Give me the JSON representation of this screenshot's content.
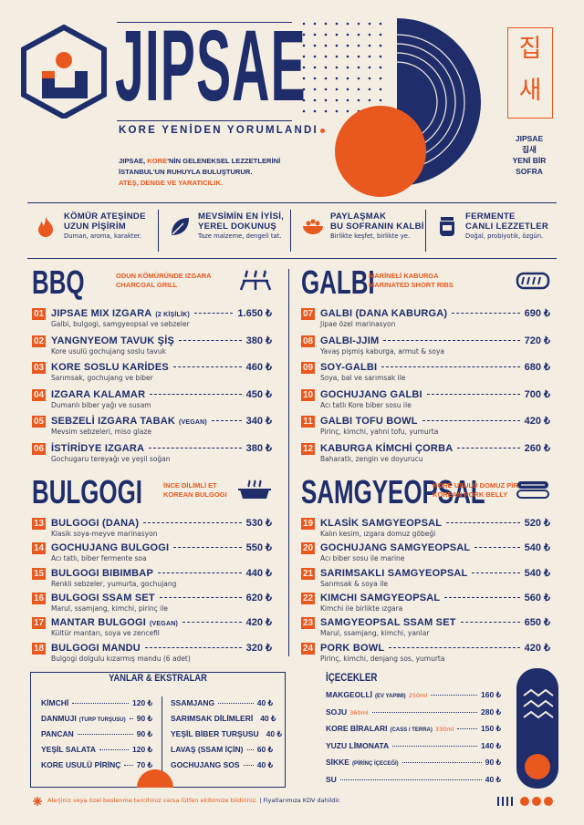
{
  "header": {
    "title": "JIPSAE",
    "tagline": "KORE YENİDEN YORUMLANDI",
    "intro": {
      "lead": "JIPSAE, ",
      "accent_word": "KORE",
      "rest": "'NİN GELENEKSEL LEZZETLERİNİ",
      "line2": "İSTANBUL'UN RUHUYLA BULUŞTURUR.",
      "line3": "ATEŞ, DENGE VE YARATICILIK."
    },
    "korean": {
      "box": [
        "집",
        "새"
      ],
      "lines": [
        "JIPSAE",
        "집새",
        "YENİ BİR",
        "SOFRA"
      ]
    }
  },
  "features": [
    {
      "title": [
        "KÖMÜR ATEŞİNDE",
        "UZUN PİŞİRİM"
      ],
      "text": "Duman, aroma, karakter."
    },
    {
      "title": [
        "MEVSİMİN EN İYİSİ,",
        "YEREL DOKUNUŞ"
      ],
      "text": "Taze malzeme, dengeli tat."
    },
    {
      "title": [
        "PAYLAŞMAK",
        "BU SOFRANIN KALBİ"
      ],
      "text": "Birlikte keşfet, birlikte ye."
    },
    {
      "title": [
        "FERMENTE",
        "CANLI LEZZETLER"
      ],
      "text": "Doğal, probiyotik, özgün."
    }
  ],
  "sections": [
    {
      "title": "BBQ",
      "subtitle": [
        "ODUN KÖMÜRÜNDE IZGARA",
        "CHARCOAL GRILL"
      ],
      "items": [
        {
          "no": "01",
          "name": "JIPSAE MIX IZGARA",
          "tag": "(2 KİŞİLİK)",
          "price": "1.650 ₺",
          "desc": "Galbi, bulgogi, samgyeopsal ve sebzeler"
        },
        {
          "no": "02",
          "name": "YANGNYEOM TAVUK ŞİŞ",
          "price": "380 ₺",
          "desc": "Kore usulü gochujang soslu tavuk"
        },
        {
          "no": "03",
          "name": "KORE SOSLU KARİDES",
          "price": "460 ₺",
          "desc": "Sarımsak, gochujang ve biber"
        },
        {
          "no": "04",
          "name": "IZGARA KALAMAR",
          "price": "450 ₺",
          "desc": "Dumanlı biber yağı ve susam"
        },
        {
          "no": "05",
          "name": "SEBZELİ IZGARA TABAK",
          "tag": "(VEGAN)",
          "price": "340 ₺",
          "desc": "Mevsim sebzeleri, miso glaze"
        },
        {
          "no": "06",
          "name": "İSTİRİDYE IZGARA",
          "price": "380 ₺",
          "desc": "Gochugaru tereyağı ve yeşil soğan"
        }
      ]
    },
    {
      "title": "GALBI",
      "subtitle": [
        "MARİNELİ KABURGA",
        "MARINATED SHORT RIBS"
      ],
      "items": [
        {
          "no": "07",
          "name": "GALBI (DANA KABURGA)",
          "price": "690 ₺",
          "desc": "Jipae özel marinasyon"
        },
        {
          "no": "08",
          "name": "GALBI-JJIM",
          "price": "720 ₺",
          "desc": "Yavaş pişmiş kaburga, armut & soya"
        },
        {
          "no": "09",
          "name": "SOY-GALBI",
          "price": "680 ₺",
          "desc": "Soya, bal ve sarımsak ile"
        },
        {
          "no": "10",
          "name": "GOCHUJANG GALBI",
          "price": "700 ₺",
          "desc": "Acı tatlı Kore biber sosu ile"
        },
        {
          "no": "11",
          "name": "GALBI TOFU BOWL",
          "price": "420 ₺",
          "desc": "Pirinç, kimchi, yahni tofu, yumurta"
        },
        {
          "no": "12",
          "name": "KABURGA KİMCHİ ÇORBA",
          "price": "260 ₺",
          "desc": "Baharatlı, zengin ve doyurucu"
        }
      ]
    },
    {
      "title": "BULGOGI",
      "subtitle": [
        "İNCE DİLİMLİ ET",
        "KOREAN BULGOGI"
      ],
      "items": [
        {
          "no": "13",
          "name": "BULGOGI (DANA)",
          "price": "530 ₺",
          "desc": "Klasik soya-meyve marinasyon"
        },
        {
          "no": "14",
          "name": "GOCHUJANG BULGOGI",
          "price": "550 ₺",
          "desc": "Acı tatlı, biber fermente soa"
        },
        {
          "no": "15",
          "name": "BULGOGI BIBIMBAP",
          "price": "440 ₺",
          "desc": "Renkli sebzeler, yumurta, gochujang"
        },
        {
          "no": "16",
          "name": "BULGOGI SSAM SET",
          "price": "620 ₺",
          "desc": "Marul, ssamjang, kimchi, pirinç ile"
        },
        {
          "no": "17",
          "name": "MANTAR BULGOGI",
          "tag": "(VEGAN)",
          "price": "420 ₺",
          "desc": "Kültür mantarı, soya ve zencefil"
        },
        {
          "no": "18",
          "name": "BULGOGI MANDU",
          "price": "320 ₺",
          "desc": "Bulgogi dolgulu kızarmış mandu (6 adet)"
        }
      ]
    },
    {
      "title": "SAMGYEOPSAL",
      "subtitle": [
        "KORE USULÜ DOMUZ PİRZOLA",
        "KOREAN PORK BELLY"
      ],
      "items": [
        {
          "no": "19",
          "name": "KLASİK SAMGYEOPSAL",
          "price": "520 ₺",
          "desc": "Kalın kesim, ızgara domuz göbeği"
        },
        {
          "no": "20",
          "name": "GOCHUJANG SAMGYEOPSAL",
          "price": "540 ₺",
          "desc": "Acı biber sosu ile marine"
        },
        {
          "no": "21",
          "name": "SARIMSAKLI SAMGYEOPSAL",
          "price": "540 ₺",
          "desc": "Sarımsak & soya ile"
        },
        {
          "no": "22",
          "name": "KIMCHI SAMGYEOPSAL",
          "price": "560 ₺",
          "desc": "Kimchi ile birlikte ızgara"
        },
        {
          "no": "23",
          "name": "SAMGYEOPSAL SSAM SET",
          "price": "650 ₺",
          "desc": "Marul, ssamjang, kimchi, yanlar"
        },
        {
          "no": "24",
          "name": "PORK BOWL",
          "price": "420 ₺",
          "desc": "Pirinç, kimchi, denjang sos, yumurta"
        }
      ]
    }
  ],
  "sides": {
    "title": "YANLAR & EKSTRALAR",
    "items": [
      {
        "name": "KİMCHİ",
        "price": "120 ₺"
      },
      {
        "name": "DANMUJI",
        "note": "(TURP TURŞUSU)",
        "price": "90 ₺"
      },
      {
        "name": "PANCAN",
        "price": "90 ₺"
      },
      {
        "name": "YEŞİL SALATA",
        "price": "120 ₺"
      },
      {
        "name": "KORE USULÜ PİRİNÇ",
        "price": "70 ₺"
      },
      {
        "name": "SSAMJANG",
        "price": "40 ₺"
      },
      {
        "name": "SARIMSAK DİLİMLERİ",
        "price": "40 ₺"
      },
      {
        "name": "YEŞİL BİBER TURŞUSU",
        "price": "40 ₺"
      },
      {
        "name": "LAVAŞ (SSAM İÇİN)",
        "price": "60 ₺"
      },
      {
        "name": "GOCHUJANG SOS",
        "price": "40 ₺"
      }
    ]
  },
  "drinks": {
    "title": "İÇECEKLER",
    "items": [
      {
        "name": "MAKGEOLLİ",
        "note": "(EV YAPIMI)",
        "volume": "250ml",
        "price": "160 ₺"
      },
      {
        "name": "SOJU",
        "volume": "360ml",
        "price": "280 ₺"
      },
      {
        "name": "KORE BİRALARI",
        "note": "(CASS / TERRA)",
        "volume": "330ml",
        "price": "150 ₺"
      },
      {
        "name": "YUZU LİMONATA",
        "price": "140 ₺"
      },
      {
        "name": "SİKKE",
        "note": "(PİRİNÇ İÇECEĞİ)",
        "price": "90 ₺"
      },
      {
        "name": "SU",
        "price": "40 ₺"
      }
    ]
  },
  "footer": {
    "note": "Alerjiniz veya özel beslenme tercihiniz varsa lütfen ekibimize bildiriniz.",
    "separator": "|",
    "vat": "Fiyatlarımıza KDV dahildir."
  }
}
